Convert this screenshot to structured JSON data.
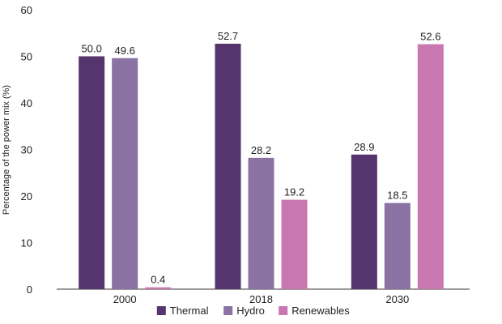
{
  "chart_data": {
    "type": "bar",
    "categories": [
      "2000",
      "2018",
      "2030"
    ],
    "series": [
      {
        "name": "Thermal",
        "color": "#56346e",
        "values": [
          50.0,
          52.7,
          28.9
        ],
        "labels": [
          "50.0",
          "52.7",
          "28.9"
        ]
      },
      {
        "name": "Hydro",
        "color": "#8a73a3",
        "values": [
          49.6,
          28.2,
          18.5
        ],
        "labels": [
          "49.6",
          "28.2",
          "18.5"
        ]
      },
      {
        "name": "Renewables",
        "color": "#c977b1",
        "values": [
          0.4,
          19.2,
          52.6
        ],
        "labels": [
          "0.4",
          "19.2",
          "52.6"
        ]
      }
    ],
    "title": "",
    "xlabel": "",
    "ylabel": "Percentage of the power mix (%)",
    "ylim": [
      0,
      60
    ],
    "yticks": [
      0,
      10,
      20,
      30,
      40,
      50,
      60
    ],
    "grid": false,
    "legend_position": "bottom"
  }
}
